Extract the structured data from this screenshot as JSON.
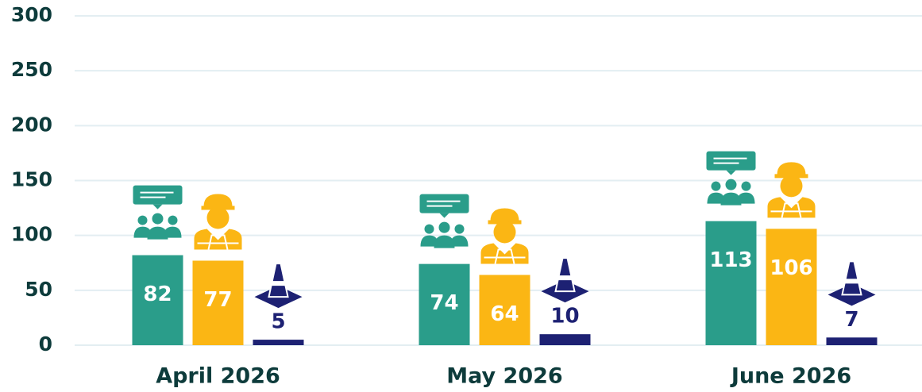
{
  "chart_data": {
    "type": "bar",
    "categories": [
      "April 2026",
      "May 2026",
      "June 2026"
    ],
    "series": [
      {
        "color": "#2a9d8a",
        "values": [
          82,
          74,
          113
        ]
      },
      {
        "color": "#fbb614",
        "values": [
          77,
          64,
          106
        ]
      },
      {
        "color": "#1d2173",
        "values": [
          5,
          10,
          7
        ]
      }
    ],
    "ylim": [
      0,
      300
    ],
    "yticks": [
      0,
      50,
      100,
      150,
      200,
      250,
      300
    ],
    "grid": true
  }
}
